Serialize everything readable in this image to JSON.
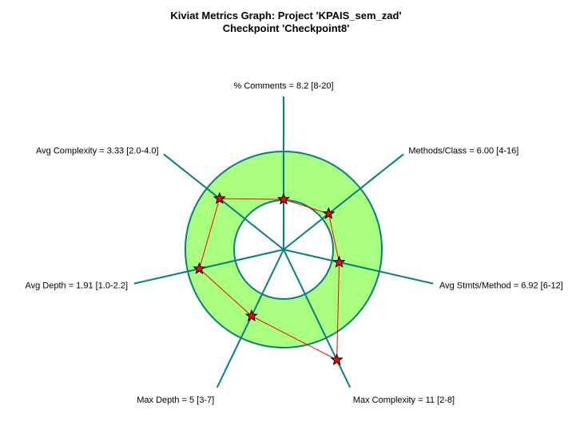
{
  "title": {
    "line1": "Kiviat Metrics Graph: Project 'KPAIS_sem_zad'",
    "line2": "Checkpoint 'Checkpoint8'"
  },
  "colors": {
    "band_fill": "#a8ff80",
    "band_stroke": "#008080",
    "axis": "#008080",
    "polygon": "#ff0000",
    "marker_fill": "#ff0000",
    "marker_stroke": "#000000"
  },
  "chart_data": {
    "type": "radar",
    "title": "Kiviat Metrics Graph: Project 'KPAIS_sem_zad'",
    "subtitle": "Checkpoint 'Checkpoint8'",
    "axes": [
      {
        "label": "% Comments = 8.2 [8-20]",
        "metric": "% Comments",
        "value": 8.2,
        "min": 8,
        "max": 20
      },
      {
        "label": "Methods/Class = 6.00 [4-16]",
        "metric": "Methods/Class",
        "value": 6.0,
        "min": 4,
        "max": 16
      },
      {
        "label": "Avg Stmts/Method = 6.92 [6-12]",
        "metric": "Avg Stmts/Method",
        "value": 6.92,
        "min": 6,
        "max": 12
      },
      {
        "label": "Max Complexity = 11 [2-8]",
        "metric": "Max Complexity",
        "value": 11,
        "min": 2,
        "max": 8
      },
      {
        "label": "Max Depth = 5 [3-7]",
        "metric": "Max Depth",
        "value": 5,
        "min": 3,
        "max": 7
      },
      {
        "label": "Avg Depth = 1.91 [1.0-2.2]",
        "metric": "Avg Depth",
        "value": 1.91,
        "min": 1.0,
        "max": 2.2
      },
      {
        "label": "Avg Complexity = 3.33 [2.0-4.0]",
        "metric": "Avg Complexity",
        "value": 3.33,
        "min": 2.0,
        "max": 4.0
      }
    ]
  }
}
